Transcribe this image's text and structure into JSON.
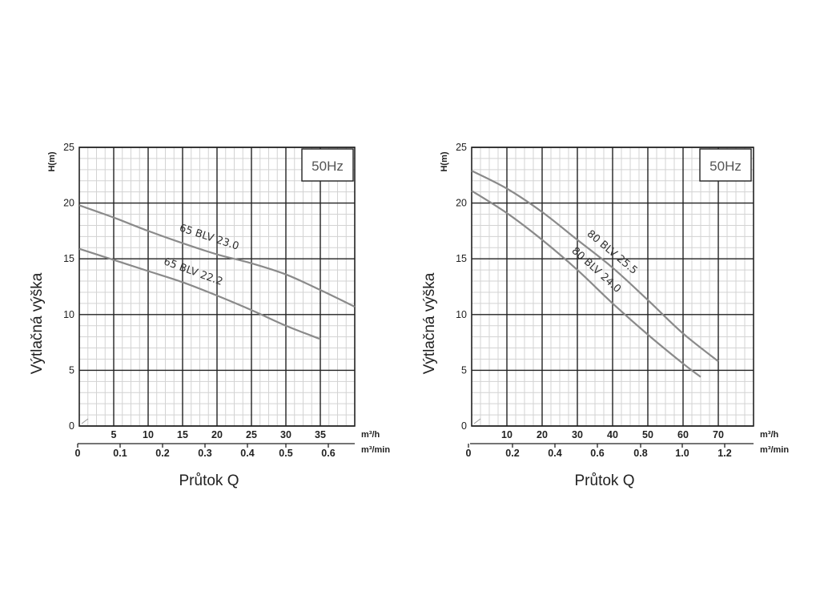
{
  "chart_data": [
    {
      "type": "line",
      "frequency_box": "50Hz",
      "ylabel": "Výtlačná výška",
      "ylabel_short": "H(m)",
      "xlabel": "Průtok Q",
      "x_unit_top": "m³/h",
      "x_unit_bottom": "m³/min",
      "ylim": [
        0,
        25
      ],
      "xlim": [
        0,
        40
      ],
      "yticks": [
        0,
        5,
        10,
        15,
        20,
        25
      ],
      "xticks_top": [
        5,
        10,
        15,
        20,
        25,
        30,
        35
      ],
      "xticks_bottom": [
        "0",
        "0.1",
        "0.2",
        "0.3",
        "0.4",
        "0.5",
        "0.6"
      ],
      "xticks_bottom_values": [
        0,
        0.1,
        0.2,
        0.3,
        0.4,
        0.5,
        0.6
      ],
      "grid": true,
      "series": [
        {
          "name": "65 BLV 23.0",
          "x": [
            0,
            5,
            10,
            15,
            20,
            25,
            30,
            35,
            40
          ],
          "y": [
            19.8,
            18.7,
            17.5,
            16.4,
            15.4,
            14.6,
            13.6,
            12.2,
            10.7
          ]
        },
        {
          "name": "65 BLV 22.2",
          "x": [
            0,
            5,
            10,
            15,
            20,
            25,
            30,
            35
          ],
          "y": [
            15.9,
            14.9,
            13.9,
            12.9,
            11.7,
            10.4,
            9.0,
            7.8
          ]
        }
      ]
    },
    {
      "type": "line",
      "frequency_box": "50Hz",
      "ylabel": "Výtlačná výška",
      "ylabel_short": "H(m)",
      "xlabel": "Průtok Q",
      "x_unit_top": "m³/h",
      "x_unit_bottom": "m³/min",
      "ylim": [
        0,
        25
      ],
      "xlim": [
        0,
        80
      ],
      "yticks": [
        0,
        5,
        10,
        15,
        20,
        25
      ],
      "xticks_top": [
        10,
        20,
        30,
        40,
        50,
        60,
        70
      ],
      "xticks_bottom": [
        "0",
        "0.2",
        "0.4",
        "0.6",
        "0.8",
        "1.0",
        "1.2"
      ],
      "xticks_bottom_values": [
        0,
        0.2,
        0.4,
        0.6,
        0.8,
        1.0,
        1.2
      ],
      "grid": true,
      "series": [
        {
          "name": "80 BLV 25.5",
          "x": [
            0,
            10,
            20,
            30,
            40,
            50,
            60,
            70
          ],
          "y": [
            22.9,
            21.3,
            19.2,
            16.7,
            14.2,
            11.3,
            8.3,
            5.8
          ]
        },
        {
          "name": "80 BLV 24.0",
          "x": [
            0,
            10,
            20,
            30,
            40,
            50,
            60,
            65
          ],
          "y": [
            21.1,
            19.1,
            16.7,
            14.0,
            11.0,
            8.2,
            5.6,
            4.4
          ]
        }
      ]
    }
  ]
}
